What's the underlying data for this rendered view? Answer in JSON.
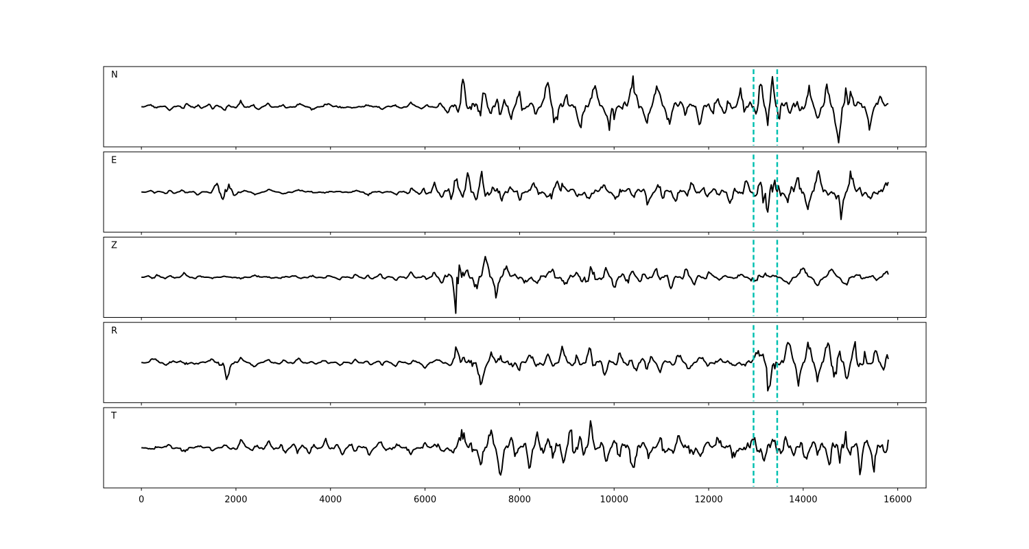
{
  "chart_data": {
    "type": "line",
    "title": "",
    "xlabel": "",
    "ylabel": "",
    "xlim": [
      -800,
      16600
    ],
    "x_ticks": [
      0,
      2000,
      4000,
      6000,
      8000,
      10000,
      12000,
      14000,
      16000
    ],
    "x_tick_labels": [
      "0",
      "2000",
      "4000",
      "6000",
      "8000",
      "10000",
      "12000",
      "14000",
      "16000"
    ],
    "sample_range": [
      0,
      15800
    ],
    "grid": false,
    "line_color": "#000000",
    "marker_color": "#00c0b0",
    "markers": [
      12950,
      13450
    ],
    "series": [
      {
        "name": "N",
        "x": [
          0,
          300,
          600,
          900,
          1200,
          1500,
          1800,
          2100,
          2400,
          2700,
          3000,
          3300,
          3600,
          3900,
          4200,
          4500,
          4800,
          5100,
          5400,
          5700,
          6000,
          6300,
          6500,
          6700,
          6800,
          7000,
          7200,
          7400,
          7600,
          7800,
          8000,
          8300,
          8600,
          8800,
          9000,
          9100,
          9300,
          9600,
          9900,
          10000,
          10200,
          10400,
          10700,
          10900,
          11200,
          11500,
          11800,
          12100,
          12400,
          12700,
          12900,
          13000,
          13150,
          13250,
          13350,
          13500,
          13700,
          13900,
          14100,
          14300,
          14500,
          14750,
          14900,
          15000,
          15200,
          15400,
          15600,
          15800
        ],
        "values": [
          0,
          0.07,
          -0.09,
          0.11,
          -0.08,
          0.1,
          -0.1,
          0.12,
          -0.12,
          0.09,
          -0.1,
          0.11,
          -0.08,
          0.1,
          -0.09,
          0.08,
          -0.11,
          0.12,
          -0.1,
          0.09,
          -0.1,
          0.12,
          -0.2,
          0.2,
          0.75,
          -0.25,
          0.65,
          -0.3,
          0.5,
          -0.35,
          0.4,
          -0.3,
          0.5,
          0.65,
          -0.7,
          0.3,
          -0.5,
          0.5,
          -0.45,
          0.6,
          -0.5,
          0.75,
          -0.45,
          0.55,
          -0.5,
          0.45,
          -0.4,
          0.4,
          -0.35,
          0.45,
          -0.3,
          0.3,
          0.82,
          -0.55,
          0.8,
          -0.45,
          0.5,
          -0.3,
          0.55,
          -0.35,
          0.5,
          -0.85,
          0.75,
          -0.6,
          0.45,
          -0.45,
          0.4,
          -0.2
        ]
      },
      {
        "name": "E",
        "x": [
          0,
          300,
          600,
          900,
          1200,
          1500,
          1750,
          1850,
          2100,
          2400,
          2700,
          3000,
          3300,
          3600,
          3900,
          4200,
          4500,
          4800,
          5100,
          5400,
          5700,
          6000,
          6200,
          6400,
          6600,
          6800,
          6900,
          7100,
          7200,
          7400,
          7600,
          7800,
          8000,
          8300,
          8600,
          8800,
          8900,
          9200,
          9500,
          9800,
          10100,
          10400,
          10700,
          11000,
          11300,
          11600,
          11900,
          12200,
          12500,
          12800,
          13000,
          13150,
          13250,
          13400,
          13500,
          13700,
          13900,
          14100,
          14300,
          14500,
          14700,
          14800,
          15000,
          15200,
          15400,
          15600,
          15800
        ],
        "values": [
          0,
          0.05,
          -0.08,
          0.06,
          -0.07,
          0.08,
          0.35,
          -0.3,
          0.08,
          -0.07,
          0.06,
          -0.05,
          0.08,
          -0.06,
          0.05,
          -0.04,
          0.06,
          -0.07,
          0.05,
          -0.06,
          0.1,
          -0.15,
          0.2,
          -0.25,
          0.5,
          -0.15,
          0.45,
          -0.3,
          0.55,
          -0.35,
          0.4,
          -0.3,
          0.35,
          -0.4,
          0.3,
          0.5,
          -0.35,
          0.4,
          -0.3,
          0.25,
          -0.3,
          0.35,
          -0.3,
          0.3,
          -0.25,
          0.3,
          -0.2,
          0.2,
          -0.3,
          0.3,
          -0.2,
          -0.6,
          0.95,
          -0.5,
          0.45,
          -0.55,
          0.5,
          -0.45,
          0.55,
          -0.35,
          0.5,
          -0.65,
          0.55,
          -0.4,
          0.35,
          -0.3,
          0.45
        ]
      },
      {
        "name": "Z",
        "x": [
          0,
          300,
          600,
          900,
          1200,
          1500,
          1800,
          2100,
          2400,
          2700,
          3000,
          3300,
          3600,
          3900,
          4200,
          4500,
          4800,
          5100,
          5400,
          5700,
          6000,
          6200,
          6400,
          6550,
          6650,
          6700,
          6800,
          6900,
          7100,
          7300,
          7500,
          7700,
          7900,
          8100,
          8400,
          8700,
          9000,
          9300,
          9500,
          9800,
          10000,
          10300,
          10600,
          10900,
          11200,
          11500,
          11700,
          12000,
          12300,
          12600,
          12900,
          13000,
          13200,
          13400,
          13700,
          14000,
          14300,
          14600,
          14900,
          15200,
          15500,
          15700,
          15800
        ],
        "values": [
          0,
          0.07,
          -0.08,
          0.09,
          -0.07,
          0.06,
          -0.08,
          0.07,
          -0.09,
          0.08,
          -0.07,
          0.09,
          -0.08,
          0.07,
          -0.06,
          0.08,
          -0.09,
          0.1,
          -0.08,
          0.12,
          -0.1,
          0.12,
          -0.2,
          0.25,
          -0.85,
          0.9,
          -0.3,
          0.5,
          -0.45,
          0.55,
          -0.4,
          0.4,
          -0.35,
          0.3,
          -0.3,
          0.3,
          -0.25,
          0.3,
          -0.5,
          0.3,
          -0.25,
          0.3,
          -0.2,
          0.2,
          -0.25,
          0.25,
          -0.2,
          0.15,
          -0.15,
          0.15,
          -0.12,
          0.3,
          -0.15,
          0.12,
          -0.2,
          0.22,
          -0.18,
          0.2,
          -0.2,
          0.15,
          -0.15,
          0.1,
          0.15
        ]
      },
      {
        "name": "R",
        "x": [
          0,
          300,
          600,
          900,
          1200,
          1500,
          1700,
          1800,
          2100,
          2400,
          2700,
          3000,
          3300,
          3600,
          3900,
          4200,
          4500,
          4800,
          5100,
          5400,
          5700,
          6000,
          6300,
          6550,
          6650,
          6800,
          7000,
          7200,
          7400,
          7600,
          7800,
          8000,
          8300,
          8600,
          8900,
          9200,
          9500,
          9800,
          10100,
          10400,
          10700,
          11000,
          11300,
          11600,
          11900,
          12200,
          12500,
          12800,
          13000,
          13200,
          13250,
          13400,
          13500,
          13700,
          13900,
          14100,
          14300,
          14500,
          14700,
          14900,
          15100,
          15300,
          15500,
          15700,
          15800
        ],
        "values": [
          0,
          0.1,
          -0.12,
          0.12,
          -0.1,
          0.1,
          0.2,
          -0.35,
          0.1,
          -0.1,
          0.08,
          -0.1,
          0.1,
          -0.08,
          0.07,
          -0.08,
          0.09,
          -0.1,
          0.1,
          -0.1,
          0.1,
          -0.12,
          0.12,
          -0.1,
          0.55,
          -0.3,
          0.35,
          -0.55,
          0.3,
          -0.3,
          0.3,
          -0.25,
          0.35,
          -0.4,
          0.35,
          -0.3,
          0.35,
          -0.3,
          0.25,
          -0.3,
          0.3,
          -0.25,
          0.3,
          -0.2,
          0.25,
          -0.2,
          0.2,
          -0.2,
          0.2,
          0.45,
          -0.9,
          0.35,
          -0.4,
          0.55,
          -0.45,
          0.5,
          -0.4,
          0.4,
          0.75,
          -0.6,
          0.55,
          -0.4,
          0.35,
          -0.2,
          -0.35
        ]
      },
      {
        "name": "T",
        "x": [
          0,
          300,
          600,
          900,
          1200,
          1500,
          1800,
          2100,
          2400,
          2700,
          3000,
          3300,
          3600,
          3900,
          4200,
          4500,
          4800,
          5100,
          5400,
          5700,
          6000,
          6300,
          6600,
          6800,
          7000,
          7200,
          7400,
          7600,
          7900,
          8200,
          8400,
          8600,
          8700,
          8900,
          9100,
          9300,
          9500,
          9800,
          10100,
          10400,
          10700,
          11000,
          11300,
          11600,
          11900,
          12200,
          12500,
          12800,
          13000,
          13200,
          13400,
          13600,
          13800,
          14000,
          14300,
          14600,
          14800,
          14900,
          15000,
          15200,
          15300,
          15500,
          15800
        ],
        "values": [
          0,
          0.1,
          -0.15,
          0.18,
          -0.12,
          0.15,
          -0.15,
          0.18,
          -0.15,
          0.2,
          -0.18,
          0.2,
          -0.2,
          0.18,
          -0.22,
          0.2,
          -0.18,
          0.22,
          -0.2,
          0.25,
          -0.2,
          0.3,
          -0.2,
          -0.7,
          0.45,
          -0.55,
          0.5,
          -0.6,
          0.55,
          -0.5,
          0.45,
          -0.7,
          0.75,
          -0.6,
          0.6,
          -0.55,
          0.55,
          -0.45,
          0.5,
          -0.55,
          0.5,
          -0.5,
          0.55,
          -0.45,
          0.6,
          -0.5,
          0.5,
          -0.4,
          0.65,
          -0.55,
          0.5,
          -0.55,
          0.5,
          -0.45,
          0.4,
          -0.5,
          0.75,
          -0.8,
          0.6,
          -0.85,
          0.45,
          -0.55,
          0.7
        ]
      }
    ]
  }
}
